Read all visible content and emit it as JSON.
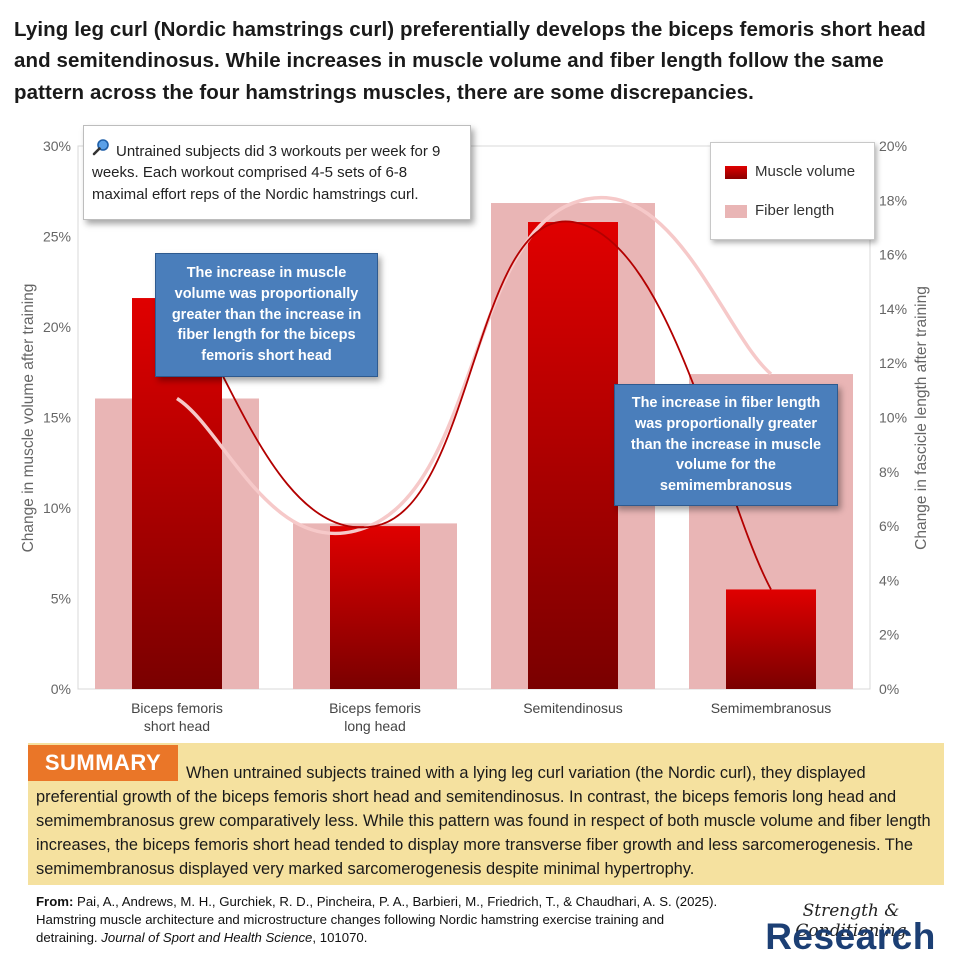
{
  "title": "Lying leg curl (Nordic hamstrings curl) preferentially develops the biceps femoris short head and semitendinosus. While increases in muscle volume and fiber length follow the same pattern across the four hamstrings muscles, there are some discrepancies.",
  "note": "Untrained subjects did 3 workouts per week for 9 weeks. Each workout comprised 4-5 sets of 6-8 maximal effort reps of the Nordic hamstrings curl.",
  "note_icon": "magnifier-icon",
  "callouts": {
    "left": "The increase in muscle volume was proportionally greater than the increase in fiber length for the biceps femoris short head",
    "right": "The increase in fiber length was proportionally greater than the increase in muscle volume for the semimembranosus"
  },
  "colors": {
    "muscle_volume": "#cc0000",
    "fiber_length": "#e9b5b5",
    "callout_bg": "#4a7ebb",
    "summary_bg": "#f5e19f",
    "summary_tag": "#ea7628",
    "brand": "#1c3f74"
  },
  "chart_data": {
    "type": "bar",
    "categories": [
      [
        "Biceps femoris",
        "short head"
      ],
      [
        "Biceps femoris",
        "long head"
      ],
      [
        "Semitendinosus"
      ],
      [
        "Semimembranosus"
      ]
    ],
    "series": [
      {
        "name": "Muscle volume",
        "axis": "left",
        "values": [
          21.6,
          9.0,
          25.8,
          5.5
        ]
      },
      {
        "name": "Fiber length",
        "axis": "right",
        "values": [
          10.7,
          6.1,
          17.9,
          11.6
        ]
      }
    ],
    "ylabel": "Change in muscle volume after training",
    "y2label": "Change in fascicle length after training",
    "ylim": [
      0,
      30
    ],
    "y2lim": [
      0,
      20
    ],
    "yticks": [
      "0%",
      "5%",
      "10%",
      "15%",
      "20%",
      "25%",
      "30%"
    ],
    "y2ticks": [
      "0%",
      "2%",
      "4%",
      "6%",
      "8%",
      "10%",
      "12%",
      "14%",
      "16%",
      "18%",
      "20%"
    ],
    "legend": [
      "Muscle volume",
      "Fiber length"
    ],
    "legend_position": "top-right",
    "grid": false
  },
  "summary": {
    "tag": "SUMMARY",
    "text": "When untrained subjects trained with a lying leg curl variation (the Nordic curl), they displayed preferential growth of the biceps femoris short head and semitendinosus. In contrast, the biceps femoris long head and semimembranosus grew comparatively less. While this pattern was found in respect of both muscle volume and fiber length increases, the biceps femoris short head tended to display more transverse fiber growth and less sarcomerogenesis. The semimembranosus displayed very marked sarcomerogenesis despite minimal hypertrophy."
  },
  "reference": {
    "label": "From:",
    "authors": "Pai, A., Andrews, M. H., Gurchiek, R. D., Pincheira, P. A., Barbieri, M., Friedrich, T., & Chaudhari, A. S. (2025). Hamstring muscle architecture and microstructure changes following Nordic hamstring exercise training and detraining.",
    "journal": "Journal of Sport and Health Science",
    "suffix": ", 101070."
  },
  "brand": {
    "top": "Strength & Conditioning",
    "bottom": "Research"
  }
}
